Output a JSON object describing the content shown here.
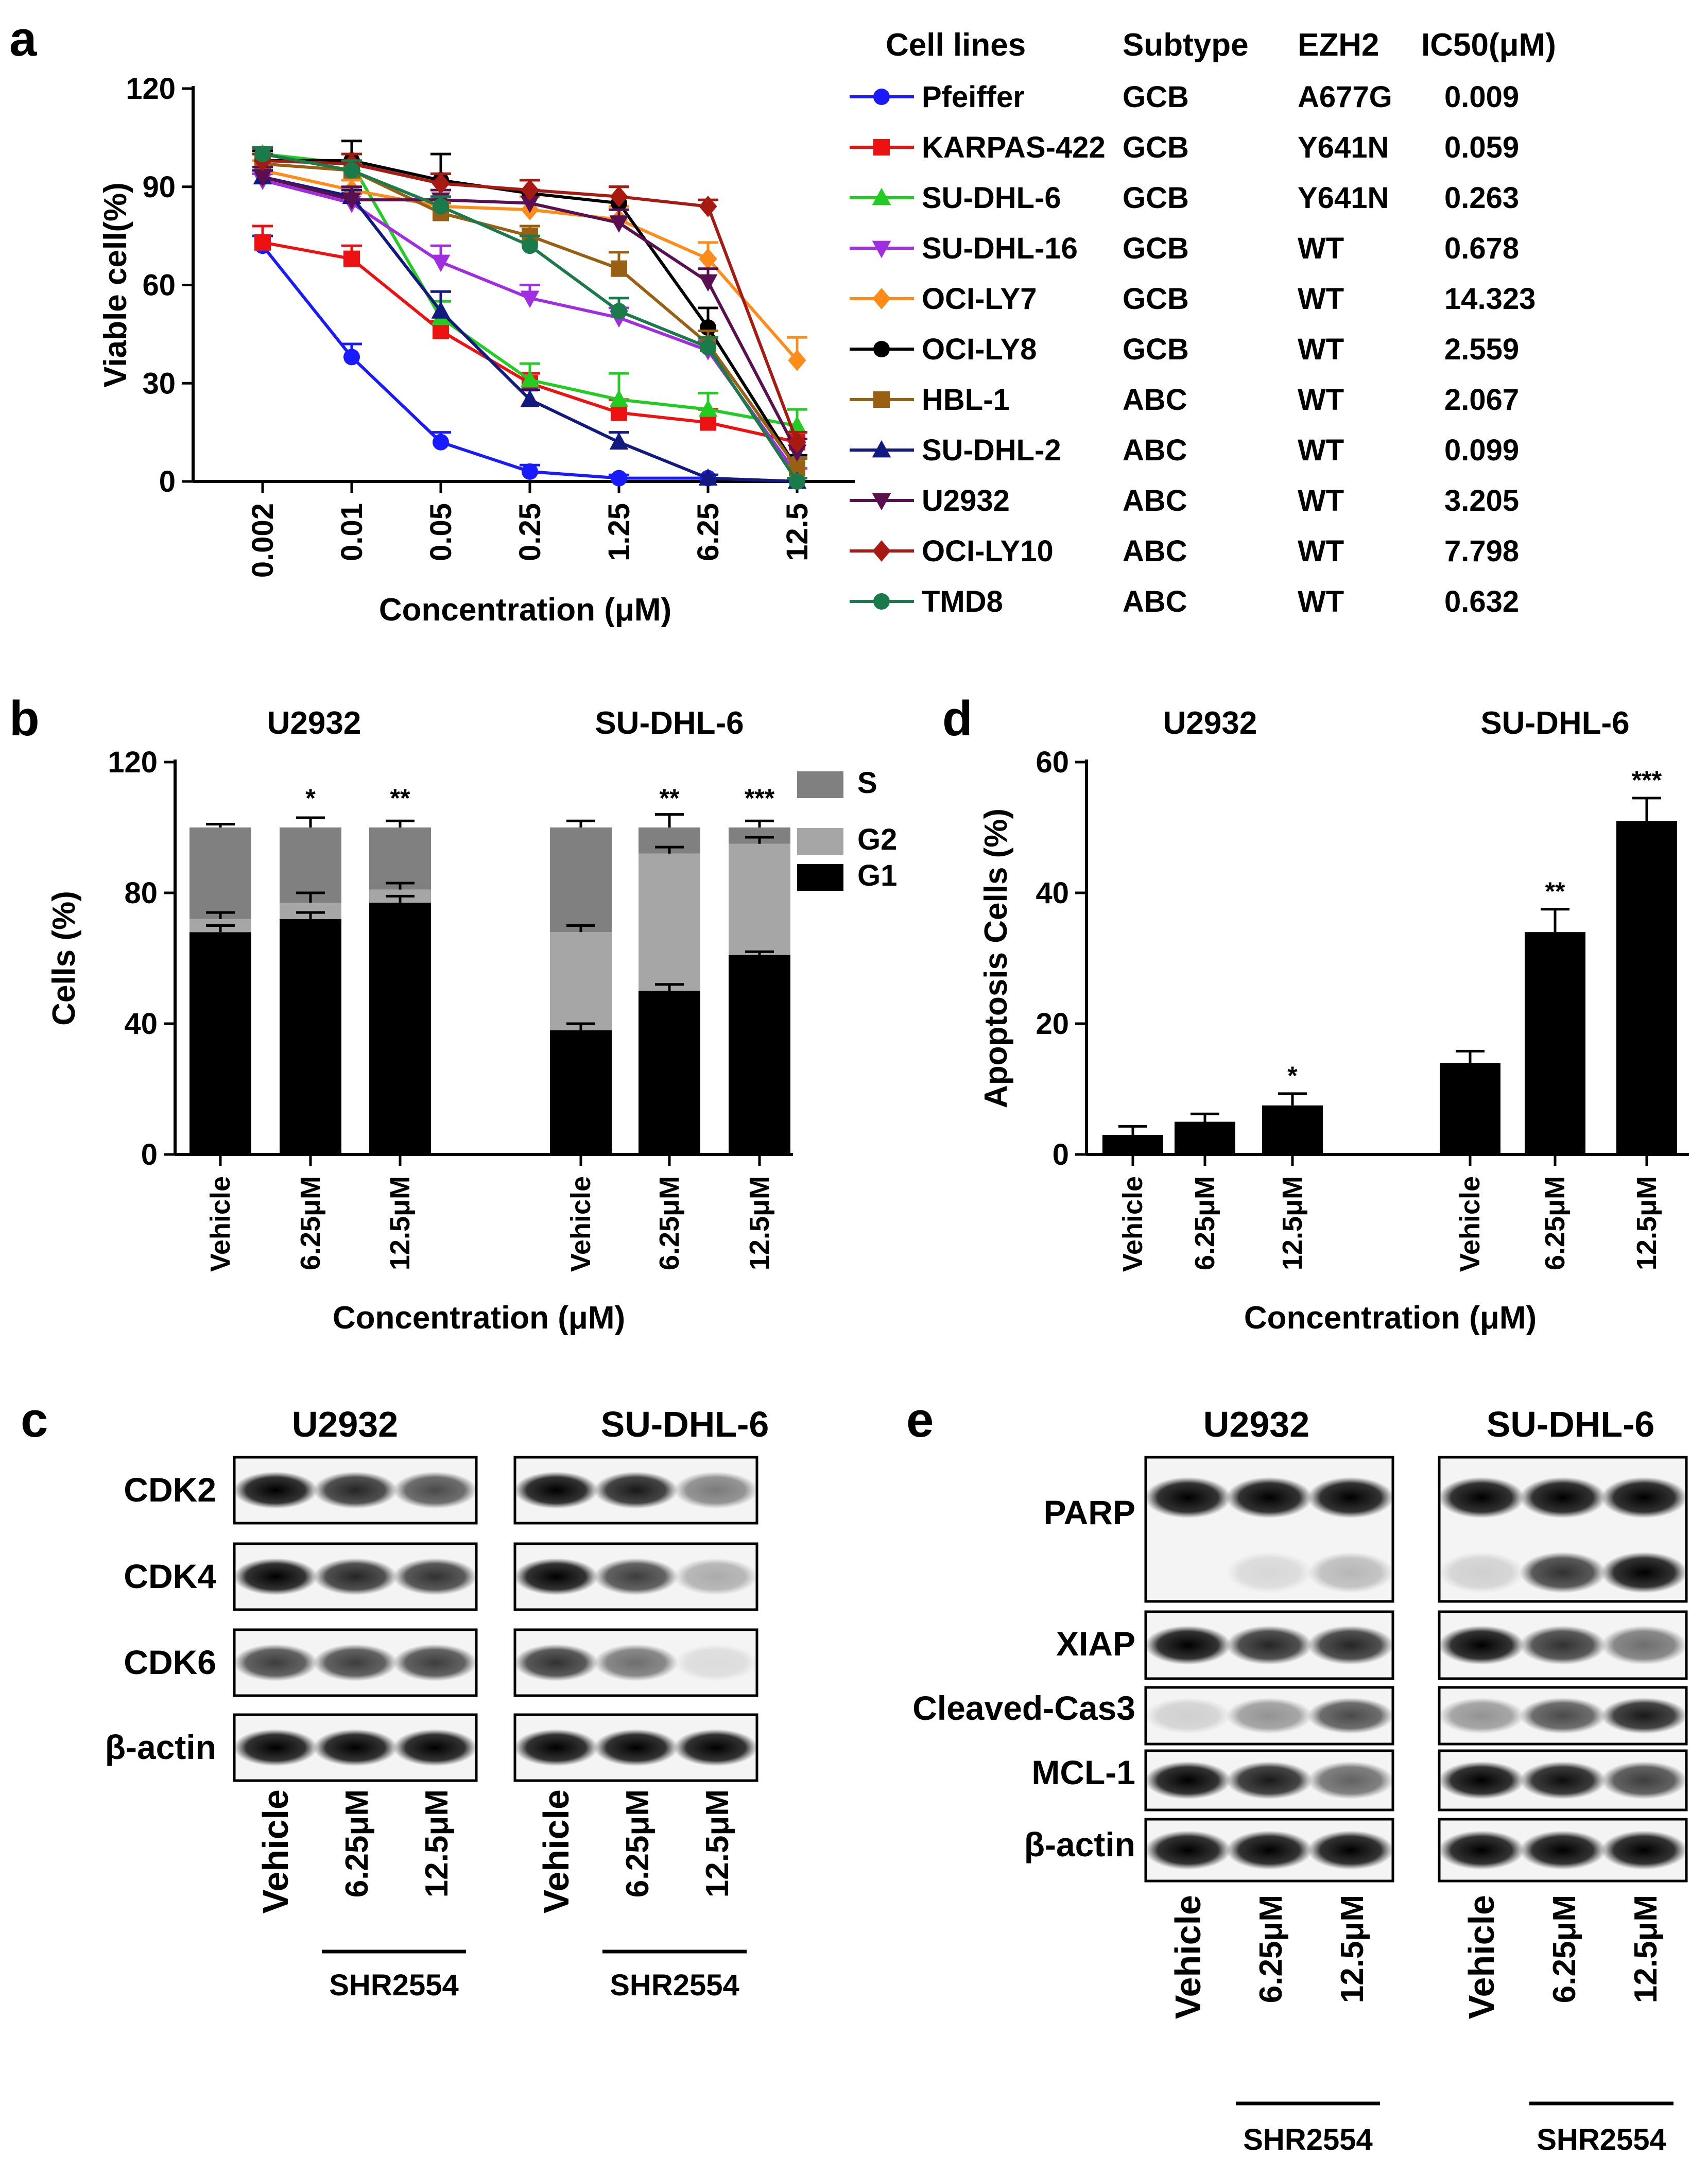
{
  "panels": {
    "a": {
      "letter": "a",
      "ylabel": "Viable cell(%)",
      "xlabel": "Concentration (μM)",
      "table_headers": {
        "cell": "Cell lines",
        "subtype": "Subtype",
        "ezh2": "EZH2",
        "ic50": "IC50(μM)"
      },
      "lines": [
        {
          "name": "Pfeiffer",
          "subtype": "GCB",
          "ezh2": "A677G",
          "ic50": "0.009",
          "color": "#1a1aff",
          "marker": "circle"
        },
        {
          "name": "KARPAS-422",
          "subtype": "GCB",
          "ezh2": "Y641N",
          "ic50": "0.059",
          "color": "#ee1111",
          "marker": "square"
        },
        {
          "name": "SU-DHL-6",
          "subtype": "GCB",
          "ezh2": "Y641N",
          "ic50": "0.263",
          "color": "#22cc22",
          "marker": "triangle-up"
        },
        {
          "name": "SU-DHL-16",
          "subtype": "GCB",
          "ezh2": "WT",
          "ic50": "0.678",
          "color": "#a02ee0",
          "marker": "triangle-down"
        },
        {
          "name": "OCI-LY7",
          "subtype": "GCB",
          "ezh2": "WT",
          "ic50": "14.323",
          "color": "#ff8c1a",
          "marker": "diamond"
        },
        {
          "name": "OCI-LY8",
          "subtype": "GCB",
          "ezh2": "WT",
          "ic50": "2.559",
          "color": "#000000",
          "marker": "circle"
        },
        {
          "name": "HBL-1",
          "subtype": "ABC",
          "ezh2": "WT",
          "ic50": "2.067",
          "color": "#996014",
          "marker": "square"
        },
        {
          "name": "SU-DHL-2",
          "subtype": "ABC",
          "ezh2": "WT",
          "ic50": "0.099",
          "color": "#121a80",
          "marker": "triangle-up"
        },
        {
          "name": "U2932",
          "subtype": "ABC",
          "ezh2": "WT",
          "ic50": "3.205",
          "color": "#5a1050",
          "marker": "triangle-down"
        },
        {
          "name": "OCI-LY10",
          "subtype": "ABC",
          "ezh2": "WT",
          "ic50": "7.798",
          "color": "#a61a12",
          "marker": "diamond"
        },
        {
          "name": "TMD8",
          "subtype": "ABC",
          "ezh2": "WT",
          "ic50": "0.632",
          "color": "#1a7a4a",
          "marker": "circle"
        }
      ]
    },
    "b": {
      "letter": "b",
      "ylabel": "Cells (%)",
      "xlabel": "Concentration (μM)",
      "group_titles": [
        "U2932",
        "SU-DHL-6"
      ],
      "legend": {
        "S": "S",
        "G2": "G2",
        "G1": "G1"
      }
    },
    "d": {
      "letter": "d",
      "ylabel": "Apoptosis Cells (%)",
      "xlabel": "Concentration (μM)",
      "group_titles": [
        "U2932",
        "SU-DHL-6"
      ]
    },
    "c": {
      "letter": "c",
      "group_titles": [
        "U2932",
        "SU-DHL-6"
      ],
      "rows": [
        "CDK2",
        "CDK4",
        "CDK6",
        "β-actin"
      ],
      "lanes": [
        "Vehicle",
        "6.25μM",
        "12.5μM"
      ],
      "drug": "SHR2554",
      "band_intensity": {
        "U2932": [
          [
            1.0,
            0.85,
            0.7
          ],
          [
            1.0,
            0.85,
            0.8
          ],
          [
            0.75,
            0.75,
            0.75
          ],
          [
            1.0,
            1.0,
            1.0
          ]
        ],
        "SU-DHL-6": [
          [
            1.0,
            0.9,
            0.5
          ],
          [
            1.0,
            0.75,
            0.3
          ],
          [
            0.8,
            0.55,
            0.1
          ],
          [
            1.0,
            1.0,
            1.0
          ]
        ]
      }
    },
    "e": {
      "letter": "e",
      "group_titles": [
        "U2932",
        "SU-DHL-6"
      ],
      "rows": [
        "PARP",
        "XIAP",
        "Cleaved-Cas3",
        "MCL-1",
        "β-actin"
      ],
      "lanes": [
        "Vehicle",
        "6.25μM",
        "12.5μM"
      ],
      "drug": "SHR2554",
      "band_intensity": {
        "U2932": {
          "PARP_full": [
            1.0,
            1.0,
            1.0
          ],
          "PARP_cleaved": [
            0.0,
            0.12,
            0.25
          ],
          "XIAP": [
            1.0,
            0.85,
            0.85
          ],
          "Cleaved-Cas3": [
            0.15,
            0.4,
            0.7
          ],
          "MCL-1": [
            1.0,
            0.9,
            0.6
          ],
          "beta-actin": [
            1.0,
            1.0,
            1.0
          ]
        },
        "SU-DHL-6": {
          "PARP_full": [
            1.0,
            1.0,
            1.0
          ],
          "PARP_cleaved": [
            0.15,
            0.8,
            1.0
          ],
          "XIAP": [
            1.0,
            0.8,
            0.55
          ],
          "Cleaved-Cas3": [
            0.4,
            0.7,
            0.9
          ],
          "MCL-1": [
            1.0,
            0.95,
            0.75
          ],
          "beta-actin": [
            1.0,
            1.0,
            1.0
          ]
        }
      }
    }
  },
  "chart_data": [
    {
      "id": "a",
      "type": "line",
      "title": "",
      "xlabel": "Concentration (μM)",
      "ylabel": "Viable cell(%)",
      "categories": [
        "0.002",
        "0.01",
        "0.05",
        "0.25",
        "1.25",
        "6.25",
        "12.5"
      ],
      "ylim": [
        0,
        120
      ],
      "yticks": [
        "0",
        "30",
        "60",
        "90",
        "120"
      ],
      "series": [
        {
          "name": "Pfeiffer",
          "values": [
            72,
            38,
            12,
            3,
            1,
            1,
            0
          ],
          "errors": [
            3,
            4,
            3,
            2,
            1,
            1,
            0
          ]
        },
        {
          "name": "KARPAS-422",
          "values": [
            73,
            68,
            46,
            30,
            21,
            18,
            12
          ],
          "errors": [
            5,
            4,
            3,
            3,
            4,
            4,
            3
          ]
        },
        {
          "name": "SU-DHL-6",
          "values": [
            100,
            97,
            50,
            31,
            25,
            22,
            17
          ],
          "errors": [
            1,
            3,
            5,
            5,
            8,
            5,
            5
          ]
        },
        {
          "name": "SU-DHL-16",
          "values": [
            92,
            85,
            67,
            56,
            50,
            40,
            2
          ],
          "errors": [
            2,
            3,
            5,
            4,
            3,
            3,
            2
          ]
        },
        {
          "name": "OCI-LY7",
          "values": [
            95,
            89,
            84,
            83,
            80,
            68,
            37
          ],
          "errors": [
            3,
            3,
            3,
            4,
            4,
            5,
            7
          ]
        },
        {
          "name": "OCI-LY8",
          "values": [
            98,
            98,
            92,
            88,
            85,
            47,
            4
          ],
          "errors": [
            3,
            6,
            8,
            4,
            5,
            6,
            4
          ]
        },
        {
          "name": "HBL-1",
          "values": [
            97,
            95,
            82,
            75,
            65,
            42,
            4
          ],
          "errors": [
            3,
            2,
            3,
            3,
            5,
            4,
            3
          ]
        },
        {
          "name": "SU-DHL-2",
          "values": [
            93,
            87,
            52,
            25,
            12,
            1,
            0
          ],
          "errors": [
            2,
            2,
            6,
            3,
            3,
            1,
            1
          ]
        },
        {
          "name": "U2932",
          "values": [
            93,
            86,
            86,
            85,
            79,
            61,
            9
          ],
          "errors": [
            3,
            4,
            3,
            4,
            4,
            4,
            4
          ]
        },
        {
          "name": "OCI-LY10",
          "values": [
            98,
            97,
            91,
            89,
            87,
            84,
            12
          ],
          "errors": [
            2,
            3,
            3,
            3,
            3,
            2,
            3
          ]
        },
        {
          "name": "TMD8",
          "values": [
            100,
            95,
            84,
            72,
            52,
            41,
            0
          ],
          "errors": [
            2,
            3,
            3,
            3,
            4,
            3,
            1
          ]
        }
      ]
    },
    {
      "id": "b",
      "type": "bar",
      "stacked": true,
      "xlabel": "Concentration (μM)",
      "ylabel": "Cells (%)",
      "ylim": [
        0,
        120
      ],
      "yticks": [
        "0",
        "40",
        "80",
        "120"
      ],
      "categories": [
        "Vehicle",
        "6.25μM",
        "12.5μM",
        "Vehicle",
        "6.25μM",
        "12.5μM"
      ],
      "groups": [
        "U2932",
        "SU-DHL-6"
      ],
      "series": [
        {
          "name": "G1",
          "color": "#000000",
          "values": [
            68,
            72,
            77,
            38,
            50,
            61
          ],
          "errors": [
            2,
            2,
            2,
            2,
            2,
            1
          ]
        },
        {
          "name": "G2",
          "color": "#a6a6a6",
          "values": [
            4,
            5,
            4,
            30,
            42,
            34
          ],
          "errors": [
            2,
            3,
            2,
            2,
            2,
            2
          ]
        },
        {
          "name": "S",
          "color": "#808080",
          "values": [
            28,
            23,
            19,
            32,
            8,
            5
          ],
          "errors": [
            1,
            3,
            2,
            2,
            4,
            2
          ]
        }
      ],
      "annotations": [
        "",
        "*",
        "**",
        "",
        "**",
        "***"
      ]
    },
    {
      "id": "d",
      "type": "bar",
      "xlabel": "Concentration (μM)",
      "ylabel": "Apoptosis Cells (%)",
      "ylim": [
        0,
        60
      ],
      "yticks": [
        "0",
        "20",
        "40",
        "60"
      ],
      "categories": [
        "Vehicle",
        "6.25μM",
        "12.5μM",
        "Vehicle",
        "6.25μM",
        "12.5μM"
      ],
      "groups": [
        "U2932",
        "SU-DHL-6"
      ],
      "series": [
        {
          "name": "Apoptosis",
          "color": "#000000",
          "values": [
            3,
            5,
            7.5,
            14,
            34,
            51
          ],
          "errors": [
            1.3,
            1.2,
            1.8,
            1.8,
            3.5,
            3.5
          ]
        }
      ],
      "annotations": [
        "",
        "",
        "*",
        "",
        "**",
        "***"
      ]
    }
  ]
}
